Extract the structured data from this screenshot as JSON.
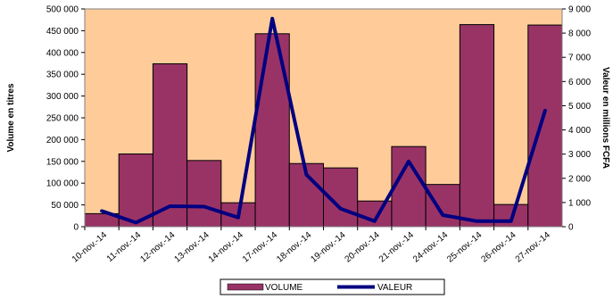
{
  "chart_data": {
    "type": "bar",
    "categories": [
      "10-nov.-14",
      "11-nov.-14",
      "12-nov.-14",
      "13-nov.-14",
      "14-nov.-14",
      "17-nov.-14",
      "18-nov.-14",
      "19-nov.-14",
      "20-nov.-14",
      "21-nov.-14",
      "24-nov.-14",
      "25-nov.-14",
      "26-nov.-14",
      "27-nov.-14"
    ],
    "series": [
      {
        "name": "VOLUME",
        "type": "bar",
        "axis": "left",
        "color": "#993366",
        "values": [
          30000,
          167000,
          374000,
          152000,
          55000,
          443000,
          145000,
          135000,
          59000,
          184000,
          97000,
          464000,
          51000,
          463000
        ]
      },
      {
        "name": "VALEUR",
        "type": "line",
        "axis": "right",
        "color": "#000080",
        "values": [
          650,
          170,
          850,
          830,
          380,
          8600,
          2150,
          750,
          230,
          2700,
          480,
          230,
          230,
          4800
        ]
      }
    ],
    "ylabel": "Volume en titres",
    "y2label": "Valeur en millions FCFA",
    "ylim": [
      0,
      500000
    ],
    "y2lim": [
      0,
      9000
    ],
    "y_ticks": [
      "0",
      "50 000",
      "100 000",
      "150 000",
      "200 000",
      "250 000",
      "300 000",
      "350 000",
      "400 000",
      "450 000",
      "500 000"
    ],
    "y2_ticks": [
      "0",
      "1 000",
      "2 000",
      "3 000",
      "4 000",
      "5 000",
      "6 000",
      "7 000",
      "8 000",
      "9 000"
    ],
    "plot_background": "#FFCC99",
    "grid": false,
    "legend_position": "bottom"
  }
}
